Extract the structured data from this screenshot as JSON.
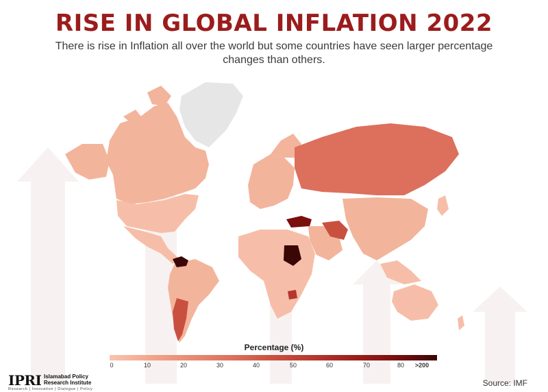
{
  "header": {
    "title": "RISE IN GLOBAL INFLATION 2022",
    "subtitle": "There is rise in Inflation all over the world but some countries have seen larger percentage changes than others."
  },
  "legend": {
    "title": "Percentage (%)",
    "ticks": [
      "0",
      "10",
      "20",
      "30",
      "40",
      "50",
      "60",
      "70",
      "80",
      ">200"
    ],
    "colors": [
      "#f8c4b0",
      "#f2a58c",
      "#e88a72",
      "#dc705c",
      "#c9503f",
      "#b5372e",
      "#9a1e1a",
      "#7a0f0e",
      "#3a0606"
    ],
    "no_data_color": "#e6e6e6"
  },
  "map": {
    "regions": [
      {
        "name": "Greenland",
        "level": "no-data"
      },
      {
        "name": "Canada",
        "level": "low"
      },
      {
        "name": "United States",
        "level": "low"
      },
      {
        "name": "Mexico & Central America",
        "level": "low"
      },
      {
        "name": "South America",
        "level": "low"
      },
      {
        "name": "Venezuela",
        "level": ">200"
      },
      {
        "name": "Argentina",
        "level": "high"
      },
      {
        "name": "Europe",
        "level": "low"
      },
      {
        "name": "Russia",
        "level": "medium"
      },
      {
        "name": "Turkey",
        "level": "very-high"
      },
      {
        "name": "Iran",
        "level": "medium-high"
      },
      {
        "name": "Africa",
        "level": "low"
      },
      {
        "name": "Sudan",
        "level": ">200"
      },
      {
        "name": "Zimbabwe",
        "level": "high"
      },
      {
        "name": "Middle East",
        "level": "low"
      },
      {
        "name": "Asia",
        "level": "low"
      },
      {
        "name": "Australia",
        "level": "low"
      }
    ]
  },
  "footer": {
    "logo_mark": "IPRI",
    "logo_name": "Islamabad Policy Research Institute",
    "logo_tagline": "Research | Innovation | Dialogue | Policy",
    "source": "Source: IMF"
  }
}
